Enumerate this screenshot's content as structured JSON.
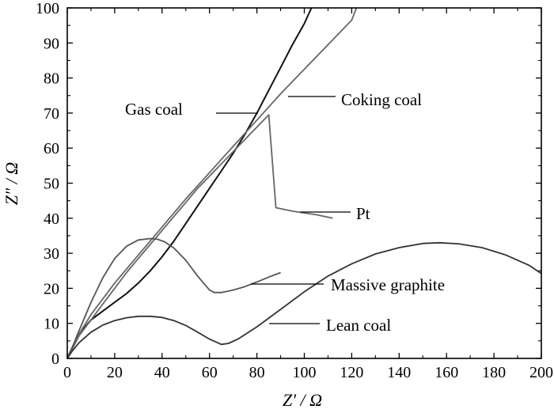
{
  "chart_data": {
    "type": "line",
    "title": "",
    "xlabel": "Z′ / Ω",
    "ylabel": "Z″ / Ω",
    "xlim": [
      0,
      200
    ],
    "ylim": [
      0,
      100
    ],
    "xticks": [
      0,
      20,
      40,
      60,
      80,
      100,
      120,
      140,
      160,
      180,
      200
    ],
    "yticks": [
      0,
      10,
      20,
      30,
      40,
      50,
      60,
      70,
      80,
      90,
      100
    ],
    "grid": false,
    "legend": "none",
    "series": [
      {
        "name": "Gas coal",
        "color": "#111111",
        "x": [
          0,
          2,
          5,
          10,
          15,
          20,
          25,
          30,
          35,
          40,
          45,
          50,
          55,
          60,
          65,
          70,
          75,
          80,
          85,
          90,
          95,
          100,
          103
        ],
        "y": [
          0,
          3,
          7,
          11,
          13.5,
          16,
          18.5,
          21.5,
          25,
          29,
          33.5,
          38.5,
          43.5,
          48.5,
          53.5,
          58.5,
          64,
          70,
          76.5,
          83,
          89.5,
          95.5,
          100
        ]
      },
      {
        "name": "Coking coal",
        "color": "#666666",
        "x": [
          0,
          2,
          5,
          10,
          20,
          30,
          40,
          50,
          60,
          70,
          80,
          90,
          100,
          110,
          115,
          120,
          122
        ],
        "y": [
          0,
          3,
          7,
          12.5,
          21.5,
          29.5,
          37.5,
          45.5,
          53,
          60.5,
          68,
          75.5,
          82.5,
          89.5,
          93,
          96.5,
          100
        ]
      },
      {
        "name": "Pt",
        "color": "#666666",
        "x": [
          0,
          2,
          5,
          10,
          15,
          20,
          25,
          30,
          35,
          40,
          45,
          50,
          55,
          60,
          65,
          70,
          75,
          80,
          85,
          88,
          95,
          105,
          112
        ],
        "y": [
          0,
          2.5,
          6.5,
          11,
          15.5,
          20,
          24.5,
          28.5,
          32.5,
          36.5,
          40.5,
          44.5,
          48.5,
          52,
          55.5,
          59,
          62.5,
          66,
          69.5,
          43,
          42,
          41,
          40
        ]
      },
      {
        "name": "Massive graphite",
        "color": "#555555",
        "x": [
          0,
          2,
          5,
          10,
          15,
          20,
          25,
          30,
          35,
          38,
          41,
          45,
          50,
          55,
          60,
          62,
          65,
          70,
          75,
          80,
          85,
          90
        ],
        "y": [
          0,
          3,
          8,
          16,
          23,
          28.5,
          32,
          33.8,
          34.2,
          34,
          33.3,
          31.5,
          28,
          23.5,
          19.5,
          18.8,
          18.8,
          19.5,
          20.5,
          21.8,
          23.2,
          24.5
        ]
      },
      {
        "name": "Lean coal",
        "color": "#333333",
        "x": [
          0,
          2,
          5,
          10,
          15,
          20,
          25,
          30,
          35,
          40,
          45,
          50,
          55,
          60,
          65,
          68,
          72,
          80,
          90,
          100,
          110,
          120,
          130,
          140,
          150,
          157,
          165,
          175,
          185,
          195,
          200
        ],
        "y": [
          0,
          2,
          4.5,
          7.5,
          9.5,
          10.8,
          11.6,
          12,
          12,
          11.7,
          10.8,
          9.4,
          7.5,
          5.5,
          4,
          4.3,
          5.5,
          9,
          14,
          19,
          23.5,
          27,
          29.8,
          31.6,
          32.8,
          33,
          32.7,
          31.6,
          29.5,
          26.5,
          24.2
        ]
      }
    ],
    "annotations": [
      {
        "text": "Gas coal",
        "series": "Gas coal"
      },
      {
        "text": "Coking coal",
        "series": "Coking coal"
      },
      {
        "text": "Pt",
        "series": "Pt"
      },
      {
        "text": "Massive graphite",
        "series": "Massive graphite"
      },
      {
        "text": "Lean coal",
        "series": "Lean coal"
      }
    ]
  }
}
